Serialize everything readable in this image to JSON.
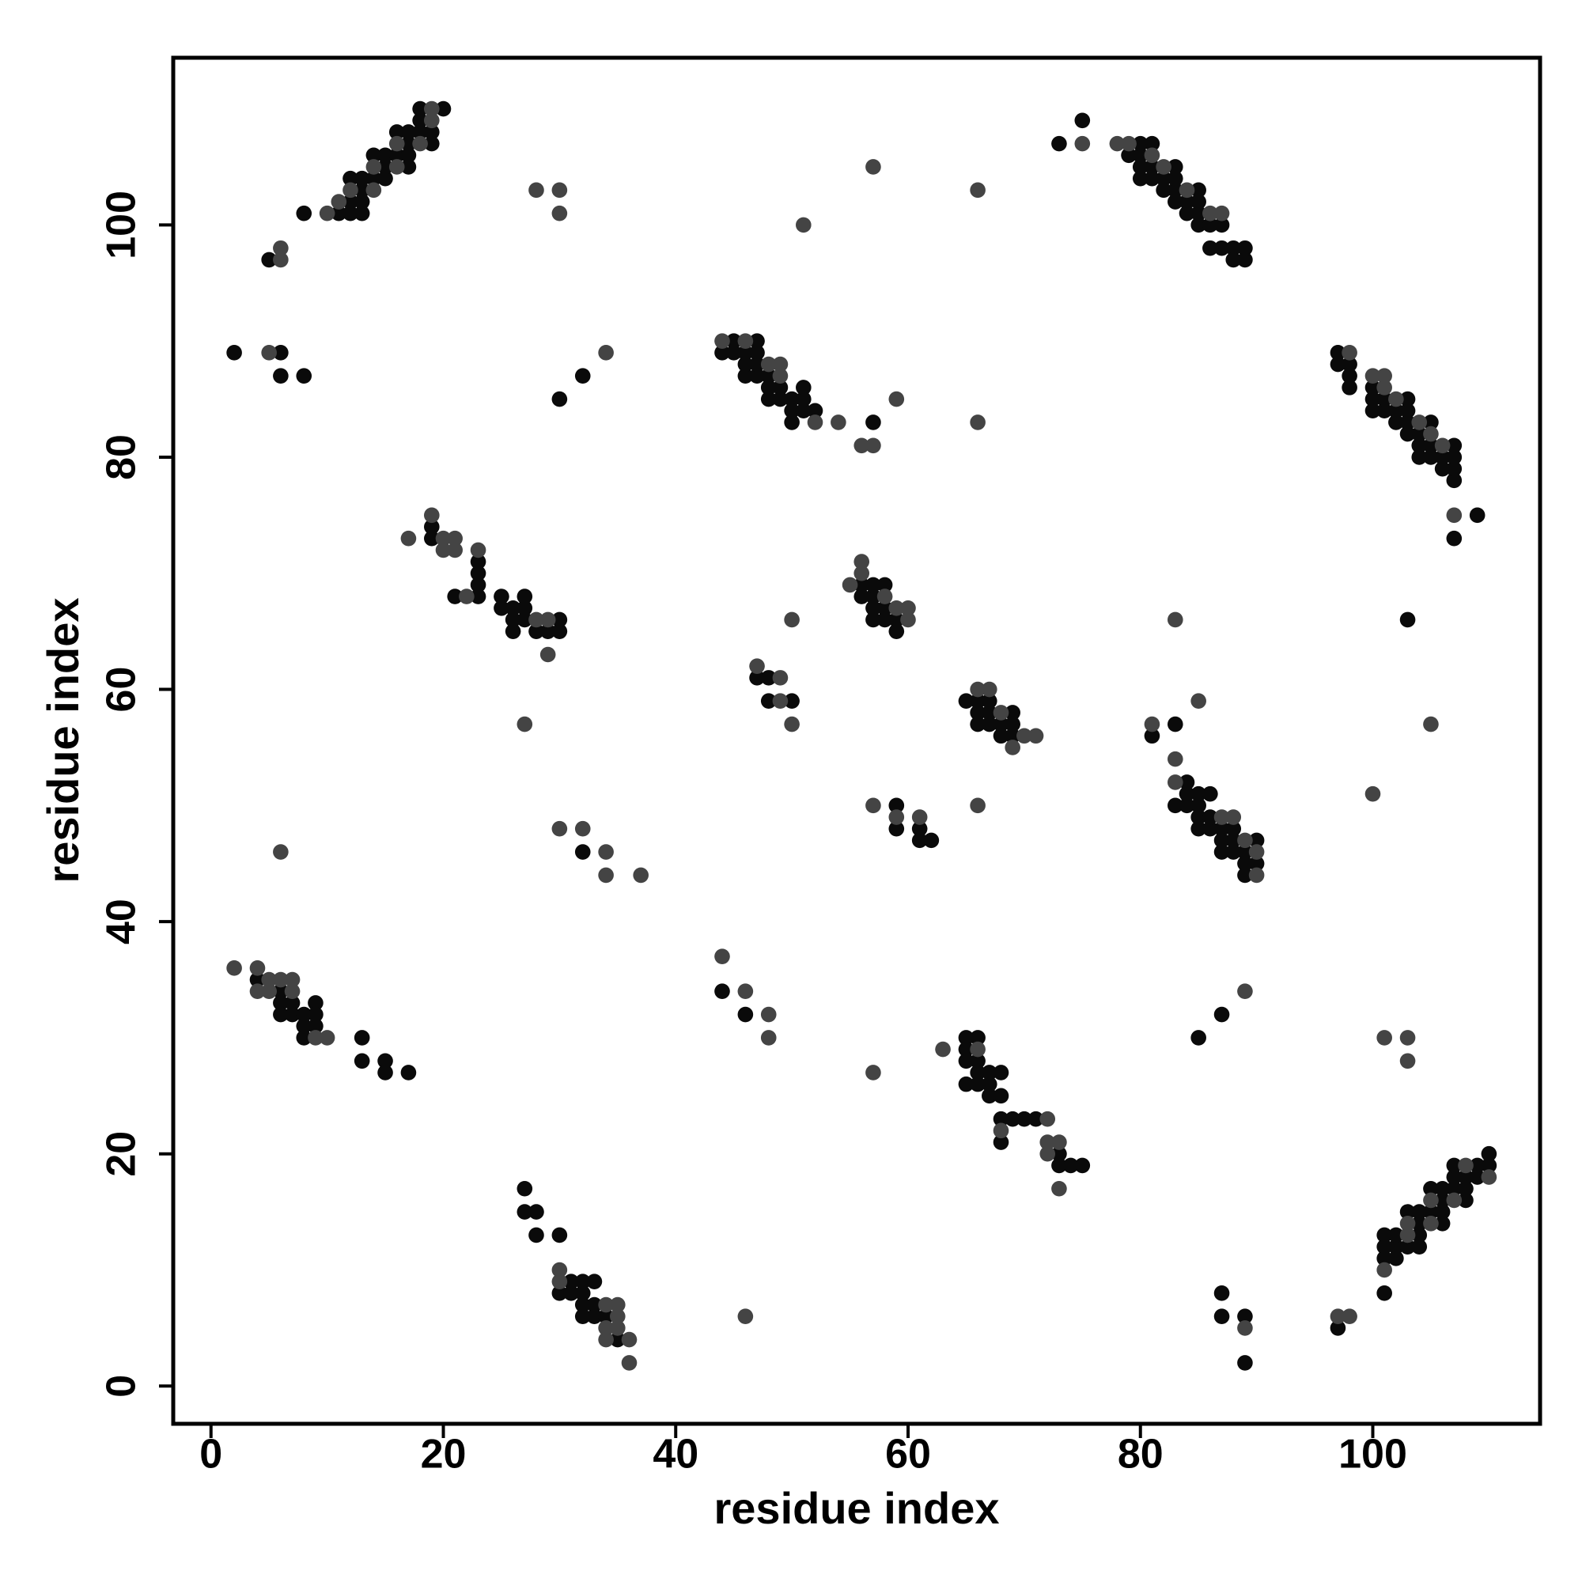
{
  "chart_data": {
    "type": "scatter",
    "x_label": "residue index",
    "y_label": "residue index",
    "xlim": [
      -3.25,
      114.4
    ],
    "ylim": [
      -3.25,
      114.4
    ],
    "xticks": [
      0,
      20,
      40,
      60,
      80,
      100
    ],
    "yticks": [
      0,
      20,
      40,
      60,
      80,
      100
    ],
    "grid": false,
    "series": [
      {
        "color": "#0a0a0a",
        "x": [
          5,
          8,
          11,
          12,
          12,
          12,
          13,
          13,
          13,
          13,
          14,
          14,
          15,
          15,
          15,
          16,
          16,
          17,
          17,
          17,
          17,
          18,
          18,
          18,
          19,
          19,
          20,
          73,
          75,
          79,
          80,
          80,
          80,
          80,
          81,
          81,
          81,
          82,
          82,
          83,
          83,
          83,
          83,
          84,
          84,
          85,
          85,
          85,
          85,
          86,
          86,
          87,
          87,
          88,
          88,
          89,
          89,
          2,
          6,
          6,
          8,
          30,
          32,
          44,
          45,
          45,
          46,
          46,
          46,
          47,
          47,
          47,
          47,
          48,
          48,
          48,
          49,
          49,
          50,
          50,
          50,
          51,
          51,
          51,
          52,
          57,
          97,
          97,
          98,
          98,
          98,
          100,
          100,
          100,
          101,
          101,
          102,
          102,
          103,
          103,
          103,
          103,
          104,
          104,
          104,
          105,
          105,
          105,
          106,
          106,
          107,
          107,
          107,
          107,
          107,
          109,
          19,
          19,
          21,
          23,
          23,
          23,
          23,
          25,
          25,
          26,
          26,
          26,
          27,
          27,
          27,
          28,
          29,
          30,
          30,
          56,
          56,
          57,
          57,
          57,
          57,
          58,
          58,
          58,
          59,
          59,
          47,
          48,
          48,
          50,
          65,
          66,
          66,
          66,
          67,
          67,
          67,
          68,
          68,
          69,
          69,
          69,
          103,
          81,
          83,
          83,
          84,
          84,
          84,
          85,
          85,
          85,
          85,
          86,
          86,
          86,
          87,
          87,
          87,
          88,
          88,
          88,
          89,
          89,
          89,
          90,
          90,
          59,
          59,
          61,
          61,
          62,
          32,
          4,
          6,
          6,
          6,
          7,
          7,
          8,
          8,
          8,
          9,
          9,
          9,
          13,
          13,
          15,
          15,
          17,
          44,
          46,
          87,
          85,
          65,
          65,
          65,
          65,
          66,
          66,
          66,
          66,
          67,
          67,
          67,
          68,
          68,
          68,
          68,
          69,
          70,
          71,
          73,
          73,
          74,
          75,
          27,
          27,
          28,
          28,
          30,
          30,
          31,
          31,
          32,
          32,
          32,
          32,
          33,
          33,
          33,
          34,
          35,
          87,
          87,
          89,
          89,
          97,
          101,
          101,
          101,
          101,
          102,
          102,
          102,
          103,
          103,
          104,
          104,
          104,
          104,
          105,
          105,
          106,
          106,
          106,
          106,
          107,
          107,
          107,
          108,
          108,
          108,
          109,
          109,
          110,
          110
        ],
        "values": [
          97,
          101,
          101,
          101,
          102,
          104,
          101,
          102,
          103,
          104,
          104,
          106,
          104,
          105,
          106,
          106,
          108,
          105,
          106,
          107,
          108,
          108,
          109,
          110,
          107,
          108,
          110,
          107,
          109,
          106,
          105,
          106,
          107,
          104,
          104,
          105,
          107,
          103,
          104,
          102,
          103,
          104,
          105,
          101,
          102,
          100,
          101,
          102,
          103,
          100,
          98,
          98,
          100,
          98,
          97,
          97,
          98,
          89,
          89,
          87,
          87,
          85,
          87,
          89,
          89,
          90,
          87,
          88,
          89,
          87,
          88,
          89,
          90,
          85,
          86,
          87,
          85,
          86,
          83,
          84,
          85,
          84,
          85,
          86,
          84,
          83,
          88,
          89,
          86,
          87,
          88,
          84,
          85,
          86,
          84,
          85,
          83,
          84,
          82,
          83,
          84,
          85,
          80,
          81,
          82,
          80,
          81,
          83,
          79,
          80,
          78,
          79,
          80,
          81,
          73,
          75,
          73,
          74,
          68,
          68,
          69,
          70,
          71,
          67,
          68,
          65,
          66,
          67,
          66,
          67,
          68,
          65,
          65,
          65,
          66,
          68,
          69,
          66,
          67,
          68,
          69,
          66,
          67,
          69,
          65,
          66,
          61,
          61,
          59,
          59,
          59,
          58,
          59,
          57,
          57,
          58,
          59,
          56,
          57,
          56,
          57,
          58,
          66,
          56,
          57,
          50,
          50,
          51,
          52,
          48,
          49,
          50,
          51,
          48,
          49,
          51,
          46,
          47,
          48,
          46,
          47,
          48,
          44,
          45,
          46,
          45,
          47,
          50,
          48,
          48,
          47,
          47,
          46,
          35,
          34,
          33,
          32,
          33,
          32,
          32,
          31,
          30,
          33,
          32,
          31,
          30,
          28,
          28,
          27,
          27,
          34,
          32,
          32,
          30,
          30,
          29,
          28,
          26,
          30,
          28,
          27,
          26,
          27,
          26,
          25,
          27,
          25,
          23,
          21,
          23,
          23,
          23,
          20,
          19,
          19,
          19,
          17,
          15,
          15,
          13,
          13,
          8,
          9,
          8,
          9,
          8,
          7,
          6,
          9,
          7,
          6,
          6,
          4,
          8,
          6,
          6,
          2,
          5,
          8,
          11,
          12,
          13,
          11,
          12,
          13,
          12,
          15,
          12,
          13,
          14,
          15,
          15,
          17,
          14,
          15,
          16,
          17,
          17,
          18,
          19,
          16,
          17,
          18,
          18,
          19,
          19,
          20
        ]
      },
      {
        "color": "#444444",
        "x": [
          6,
          6,
          10,
          11,
          12,
          14,
          14,
          16,
          16,
          18,
          19,
          19,
          28,
          30,
          30,
          51,
          57,
          66,
          75,
          78,
          79,
          81,
          82,
          84,
          86,
          87,
          5,
          34,
          44,
          46,
          48,
          49,
          49,
          52,
          54,
          56,
          57,
          59,
          66,
          98,
          100,
          101,
          101,
          102,
          104,
          105,
          106,
          107,
          17,
          19,
          20,
          20,
          21,
          21,
          22,
          23,
          28,
          29,
          29,
          27,
          55,
          56,
          56,
          58,
          59,
          60,
          60,
          47,
          49,
          49,
          50,
          50,
          66,
          67,
          68,
          69,
          70,
          71,
          83,
          81,
          85,
          105,
          100,
          83,
          83,
          87,
          88,
          89,
          90,
          90,
          57,
          59,
          61,
          66,
          6,
          30,
          32,
          34,
          34,
          37,
          2,
          4,
          4,
          5,
          5,
          6,
          7,
          7,
          9,
          10,
          44,
          46,
          48,
          48,
          57,
          63,
          89,
          101,
          103,
          103,
          66,
          68,
          72,
          72,
          72,
          73,
          73,
          30,
          30,
          34,
          34,
          34,
          35,
          35,
          35,
          36,
          36,
          46,
          89,
          97,
          98,
          101,
          103,
          103,
          105,
          105,
          107,
          108,
          110
        ],
        "values": [
          97,
          98,
          101,
          102,
          103,
          103,
          105,
          105,
          107,
          107,
          109,
          110,
          103,
          103,
          101,
          100,
          105,
          103,
          107,
          107,
          107,
          106,
          105,
          103,
          101,
          101,
          89,
          89,
          90,
          90,
          88,
          87,
          88,
          83,
          83,
          81,
          81,
          85,
          83,
          89,
          87,
          86,
          87,
          85,
          83,
          82,
          81,
          75,
          73,
          75,
          72,
          73,
          72,
          73,
          68,
          72,
          66,
          66,
          63,
          57,
          69,
          70,
          71,
          68,
          67,
          66,
          67,
          62,
          61,
          59,
          57,
          66,
          60,
          60,
          58,
          55,
          56,
          56,
          66,
          57,
          59,
          57,
          51,
          54,
          52,
          49,
          49,
          47,
          44,
          46,
          50,
          49,
          49,
          50,
          46,
          48,
          48,
          46,
          44,
          44,
          36,
          36,
          34,
          35,
          34,
          35,
          34,
          35,
          30,
          30,
          37,
          34,
          32,
          30,
          27,
          29,
          34,
          30,
          30,
          28,
          29,
          22,
          23,
          21,
          20,
          21,
          17,
          10,
          9,
          7,
          5,
          4,
          7,
          6,
          5,
          4,
          2,
          6,
          5,
          6,
          6,
          10,
          13,
          14,
          14,
          16,
          16,
          19,
          18
        ]
      }
    ]
  }
}
